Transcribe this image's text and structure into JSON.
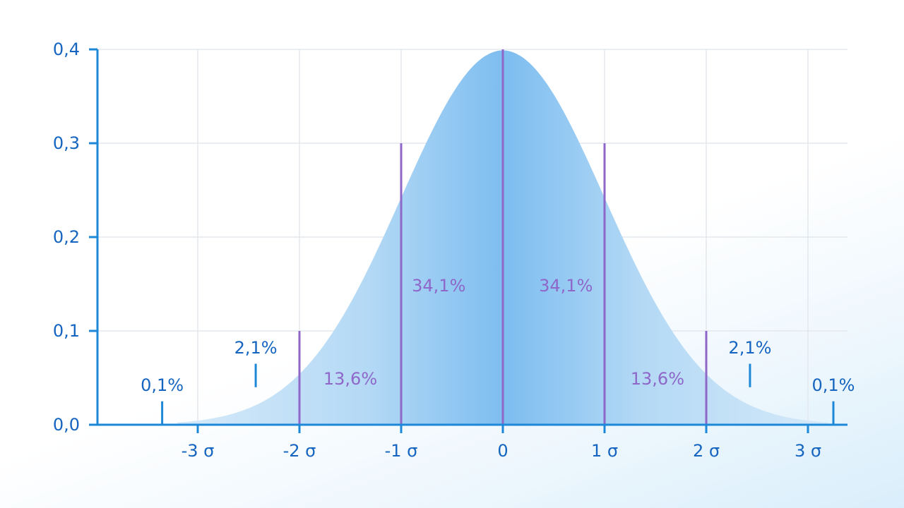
{
  "chart_data": {
    "type": "area",
    "title": "",
    "xlabel": "",
    "ylabel": "",
    "distribution": "normal",
    "mean": 0,
    "sd": 1,
    "xlim": [
      -3.9,
      3.4
    ],
    "ylim": [
      0,
      0.4
    ],
    "grid": true,
    "y_ticks": [
      {
        "value": 0.0,
        "label": "0,0"
      },
      {
        "value": 0.1,
        "label": "0,1"
      },
      {
        "value": 0.2,
        "label": "0,2"
      },
      {
        "value": 0.3,
        "label": "0,3"
      },
      {
        "value": 0.4,
        "label": "0,4"
      }
    ],
    "x_ticks": [
      {
        "value": -3,
        "label": "-3 σ"
      },
      {
        "value": -2,
        "label": "-2 σ"
      },
      {
        "value": -1,
        "label": "-1 σ"
      },
      {
        "value": 0,
        "label": "0"
      },
      {
        "value": 1,
        "label": "1 σ"
      },
      {
        "value": 2,
        "label": "2 σ"
      },
      {
        "value": 3,
        "label": "3 σ"
      }
    ],
    "dividers": [
      {
        "x": -2,
        "top": 0.1
      },
      {
        "x": -1,
        "top": 0.3
      },
      {
        "x": 0,
        "top": 0.4
      },
      {
        "x": 1,
        "top": 0.3
      },
      {
        "x": 2,
        "top": 0.1
      }
    ],
    "regions": [
      {
        "from": -3,
        "to": -2,
        "percent": "2,1%"
      },
      {
        "from": -2,
        "to": -1,
        "percent": "13,6%"
      },
      {
        "from": -1,
        "to": 0,
        "percent": "34,1%"
      },
      {
        "from": 0,
        "to": 1,
        "percent": "34,1%"
      },
      {
        "from": 1,
        "to": 2,
        "percent": "13,6%"
      },
      {
        "from": 2,
        "to": 3,
        "percent": "2,1%"
      }
    ],
    "tails": [
      {
        "side": "left",
        "percent": "0,1%"
      },
      {
        "side": "right",
        "percent": "0,1%"
      }
    ],
    "colors": {
      "axis": "#1e88d8",
      "tick_text": "#1565c0",
      "grid": "#e3e8ee",
      "divider": "#8e67c9",
      "percent_text": "#8e67c9",
      "fill_light": "#d8ebf9",
      "fill_dark": "#7dbdf0"
    }
  }
}
